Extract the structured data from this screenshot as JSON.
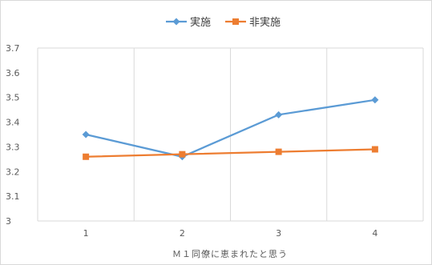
{
  "chart_data": {
    "type": "line",
    "title": "",
    "xlabel": "Ｍ１同僚に恵まれたと思う",
    "ylabel": "",
    "categories": [
      "1",
      "2",
      "3",
      "4"
    ],
    "ylim": [
      3.0,
      3.7
    ],
    "yticks": [
      "3",
      "3.1",
      "3.2",
      "3.3",
      "3.4",
      "3.5",
      "3.6",
      "3.7"
    ],
    "grid": true,
    "legend_position": "top",
    "series": [
      {
        "name": "実施",
        "values": [
          3.35,
          3.26,
          3.43,
          3.49
        ],
        "color": "#5b9bd5",
        "marker": "diamond"
      },
      {
        "name": "非実施",
        "values": [
          3.26,
          3.27,
          3.28,
          3.29
        ],
        "color": "#ed7d31",
        "marker": "square"
      }
    ]
  }
}
